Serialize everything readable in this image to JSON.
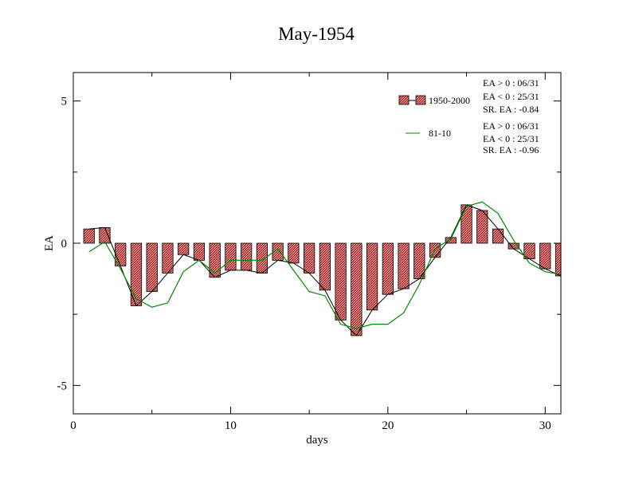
{
  "chart_data": {
    "type": "bar",
    "title": "May-1954",
    "xlabel": "days",
    "ylabel": "EA",
    "xlim": [
      0,
      31
    ],
    "ylim": [
      -6,
      6
    ],
    "xticks": [
      0,
      10,
      20,
      30
    ],
    "xtick_labels": [
      "0",
      "10",
      "20",
      "30"
    ],
    "yticks": [
      -5,
      0,
      5
    ],
    "ytick_labels": [
      "-5",
      "0",
      "5"
    ],
    "grid": false,
    "legend_position": "top-right",
    "colors": {
      "bar_fill": "#e87a7a",
      "bar_hatch": "#7a2a2a",
      "bar_line": "#000000",
      "line_81_10": "#008c00"
    },
    "x": [
      1,
      2,
      3,
      4,
      5,
      6,
      7,
      8,
      9,
      10,
      11,
      12,
      13,
      14,
      15,
      16,
      17,
      18,
      19,
      20,
      21,
      22,
      23,
      24,
      25,
      26,
      27,
      28,
      29,
      30,
      31
    ],
    "series": [
      {
        "name": "1950-2000",
        "kind": "bar",
        "values": [
          0.5,
          0.55,
          -0.8,
          -2.2,
          -1.7,
          -1.05,
          -0.4,
          -0.6,
          -1.2,
          -0.95,
          -0.95,
          -1.05,
          -0.6,
          -0.7,
          -1.05,
          -1.65,
          -2.7,
          -3.25,
          -2.35,
          -1.8,
          -1.6,
          -1.25,
          -0.5,
          0.2,
          1.35,
          1.15,
          0.5,
          -0.2,
          -0.55,
          -0.9,
          -1.15
        ]
      },
      {
        "name": "81-10",
        "kind": "line",
        "values": [
          -0.3,
          0.05,
          -0.9,
          -1.95,
          -2.25,
          -2.1,
          -1.0,
          -0.6,
          -1.05,
          -0.6,
          -0.6,
          -0.6,
          -0.2,
          -0.95,
          -1.7,
          -1.85,
          -2.85,
          -3.0,
          -2.85,
          -2.85,
          -2.45,
          -1.45,
          -0.2,
          0.15,
          1.3,
          1.45,
          1.05,
          0.1,
          -0.7,
          -1.0,
          -1.1
        ]
      }
    ],
    "stats": [
      {
        "series": "1950-2000",
        "lines": [
          "EA > 0 : 06/31",
          "EA < 0 : 25/31",
          "SR. EA : -0.84"
        ]
      },
      {
        "series": "81-10",
        "lines": [
          "EA > 0 : 06/31",
          "EA < 0 : 25/31",
          "SR. EA : -0.96"
        ]
      }
    ]
  }
}
